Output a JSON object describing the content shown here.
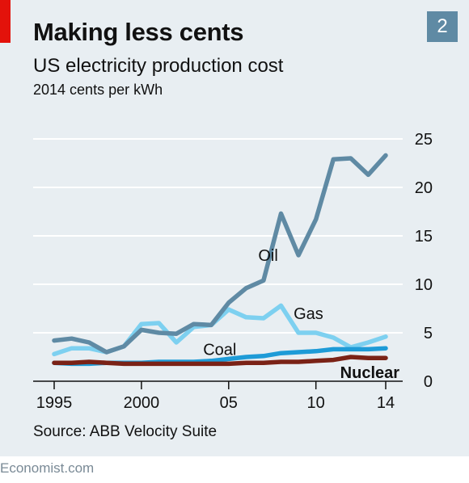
{
  "header": {
    "title": "Making less cents",
    "subtitle": "US electricity production cost",
    "units": "2014 cents per kWh",
    "badge": "2"
  },
  "source": "Source: ABB Velocity Suite",
  "footer": "Economist.com",
  "chart_data": {
    "type": "line",
    "x": [
      1995,
      1996,
      1997,
      1998,
      1999,
      2000,
      2001,
      2002,
      2003,
      2004,
      2005,
      2006,
      2007,
      2008,
      2009,
      2010,
      2011,
      2012,
      2013,
      2014
    ],
    "xtick_values": [
      1995,
      2000,
      2005,
      2010,
      2014
    ],
    "xtick_labels": [
      "1995",
      "2000",
      "05",
      "10",
      "14"
    ],
    "xlim": [
      1995,
      2014
    ],
    "ylim": [
      0,
      25
    ],
    "yticks": [
      0,
      5,
      10,
      15,
      20,
      25
    ],
    "grid": true,
    "series": [
      {
        "name": "Oil",
        "color": "#5f8aa4",
        "label_bold": false,
        "values": [
          4.2,
          4.4,
          4.0,
          3.0,
          3.6,
          5.3,
          5.0,
          4.9,
          5.9,
          5.8,
          8.1,
          9.6,
          10.4,
          17.3,
          13.0,
          16.7,
          22.9,
          23.0,
          21.3,
          23.3
        ]
      },
      {
        "name": "Gas",
        "color": "#7dd0f0",
        "label_bold": false,
        "values": [
          2.8,
          3.4,
          3.4,
          3.0,
          3.6,
          5.9,
          6.0,
          4.0,
          5.6,
          5.8,
          7.4,
          6.6,
          6.5,
          7.8,
          5.0,
          5.0,
          4.5,
          3.5,
          4.0,
          4.6
        ]
      },
      {
        "name": "Coal",
        "color": "#1e9bd7",
        "label_bold": false,
        "values": [
          1.9,
          1.8,
          1.8,
          1.9,
          1.9,
          1.9,
          2.0,
          2.0,
          2.0,
          2.1,
          2.3,
          2.5,
          2.6,
          2.9,
          3.0,
          3.1,
          3.3,
          3.3,
          3.3,
          3.4
        ]
      },
      {
        "name": "Nuclear",
        "color": "#7a2216",
        "label_bold": true,
        "values": [
          1.9,
          1.9,
          2.0,
          1.9,
          1.8,
          1.8,
          1.8,
          1.8,
          1.8,
          1.8,
          1.8,
          1.9,
          1.9,
          2.0,
          2.0,
          2.1,
          2.2,
          2.5,
          2.4,
          2.4
        ]
      }
    ]
  }
}
